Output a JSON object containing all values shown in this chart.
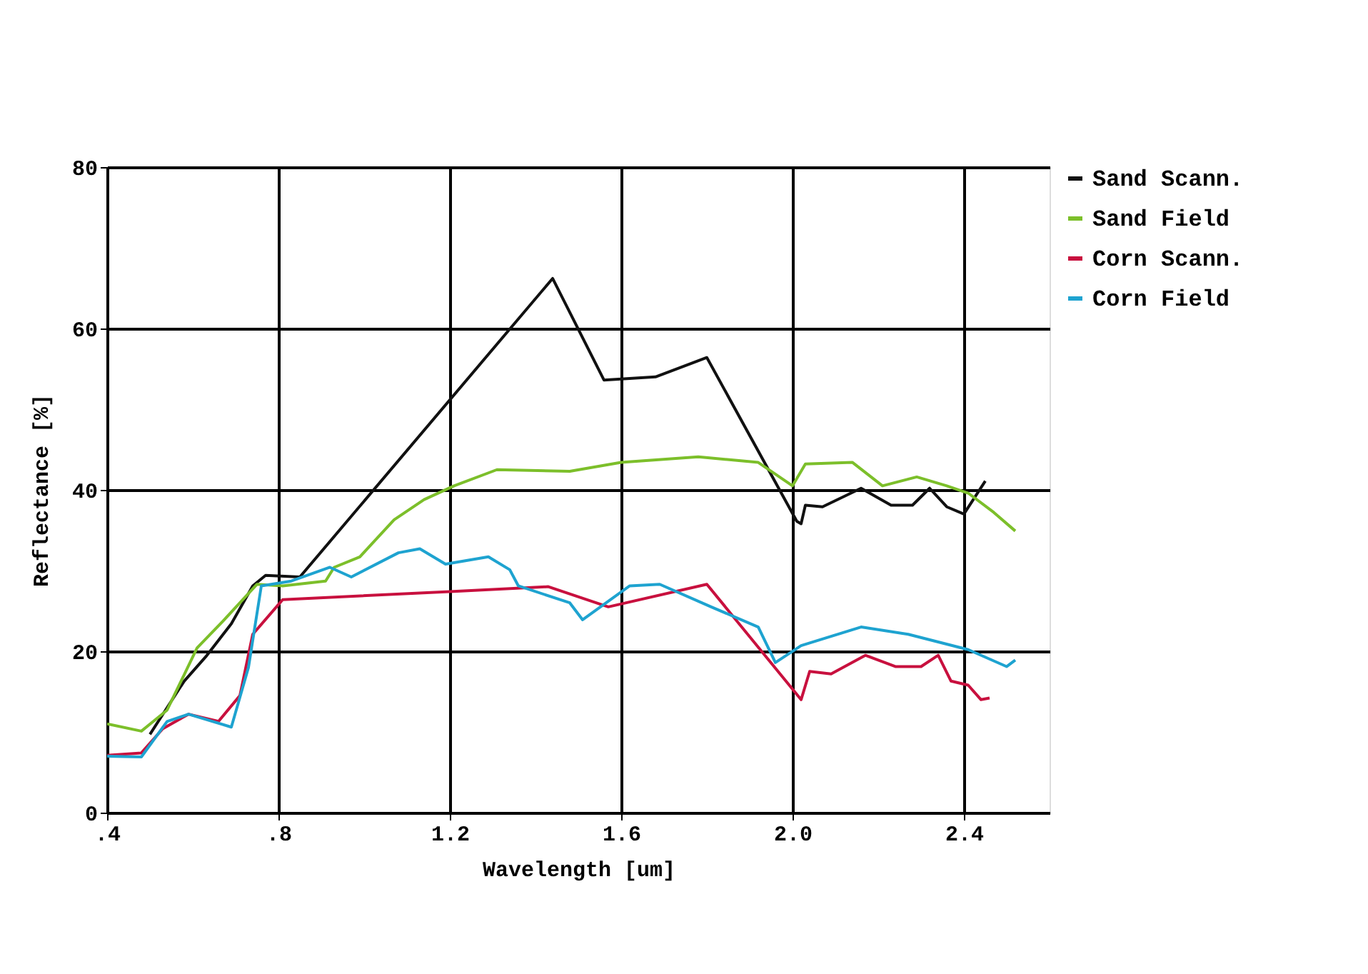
{
  "chart_data": {
    "type": "line",
    "xlabel": "Wavelength [um]",
    "ylabel": "Reflectance [%]",
    "xlim": [
      0.4,
      2.6
    ],
    "ylim": [
      0,
      80
    ],
    "xticks": [
      {
        "value": 0.4,
        "label": ".4"
      },
      {
        "value": 0.8,
        "label": ".8"
      },
      1.2,
      1.6,
      {
        "value": 2.0,
        "label": "2.0"
      },
      2.4
    ],
    "yticks": [
      0,
      20,
      40,
      60,
      80
    ],
    "grid": true,
    "legend": "right",
    "marker": "none",
    "line_style": "solid",
    "series": [
      {
        "name": "Sand Scann.",
        "color": "#111111",
        "x": [
          0.5,
          0.58,
          0.63,
          0.69,
          0.74,
          0.77,
          0.85,
          1.44,
          1.56,
          1.68,
          1.8,
          2.01,
          2.02,
          2.03,
          2.07,
          2.16,
          2.23,
          2.28,
          2.32,
          2.36,
          2.4,
          2.45
        ],
        "values": [
          9.7,
          16.3,
          19.3,
          23.4,
          28.1,
          29.4,
          29.2,
          66.2,
          53.6,
          54.0,
          56.4,
          36.1,
          35.8,
          38.1,
          37.9,
          40.2,
          38.1,
          38.1,
          40.2,
          37.9,
          37.0,
          41.1
        ]
      },
      {
        "name": "Sand Field",
        "color": "#7cbf2a",
        "x": [
          0.4,
          0.48,
          0.54,
          0.61,
          0.67,
          0.75,
          0.81,
          0.91,
          0.93,
          0.99,
          1.07,
          1.14,
          1.21,
          1.31,
          1.48,
          1.6,
          1.78,
          1.92,
          2.0,
          2.03,
          2.14,
          2.21,
          2.29,
          2.36,
          2.41,
          2.47,
          2.52
        ],
        "values": [
          11.0,
          10.1,
          12.7,
          20.4,
          23.7,
          28.3,
          28.1,
          28.7,
          30.4,
          31.7,
          36.3,
          38.8,
          40.5,
          42.5,
          42.3,
          43.4,
          44.1,
          43.4,
          40.5,
          43.2,
          43.4,
          40.5,
          41.6,
          40.5,
          39.6,
          37.2,
          34.9
        ]
      },
      {
        "name": "Corn Scann.",
        "color": "#c8103e",
        "x": [
          0.4,
          0.48,
          0.53,
          0.59,
          0.66,
          0.71,
          0.74,
          0.81,
          1.2,
          1.43,
          1.57,
          1.8,
          2.02,
          2.04,
          2.09,
          2.17,
          2.24,
          2.3,
          2.34,
          2.37,
          2.41,
          2.44,
          2.46
        ],
        "values": [
          7.1,
          7.4,
          10.4,
          12.2,
          11.3,
          14.5,
          22.1,
          26.4,
          27.4,
          28.0,
          25.5,
          28.3,
          14.0,
          17.5,
          17.2,
          19.5,
          18.1,
          18.1,
          19.5,
          16.3,
          15.8,
          14.0,
          14.2
        ]
      },
      {
        "name": "Corn Field",
        "color": "#1ea3d0",
        "x": [
          0.4,
          0.48,
          0.54,
          0.59,
          0.69,
          0.73,
          0.76,
          0.83,
          0.92,
          0.97,
          1.08,
          1.13,
          1.19,
          1.29,
          1.34,
          1.36,
          1.48,
          1.51,
          1.62,
          1.69,
          1.81,
          1.92,
          1.96,
          2.02,
          2.16,
          2.27,
          2.41,
          2.5,
          2.52
        ],
        "values": [
          7.0,
          6.9,
          11.3,
          12.2,
          10.6,
          18.0,
          28.1,
          28.7,
          30.4,
          29.2,
          32.2,
          32.7,
          30.8,
          31.7,
          30.1,
          28.1,
          26.0,
          23.9,
          28.1,
          28.3,
          25.5,
          23.0,
          18.6,
          20.7,
          23.0,
          22.1,
          20.2,
          18.1,
          18.9
        ]
      }
    ]
  }
}
